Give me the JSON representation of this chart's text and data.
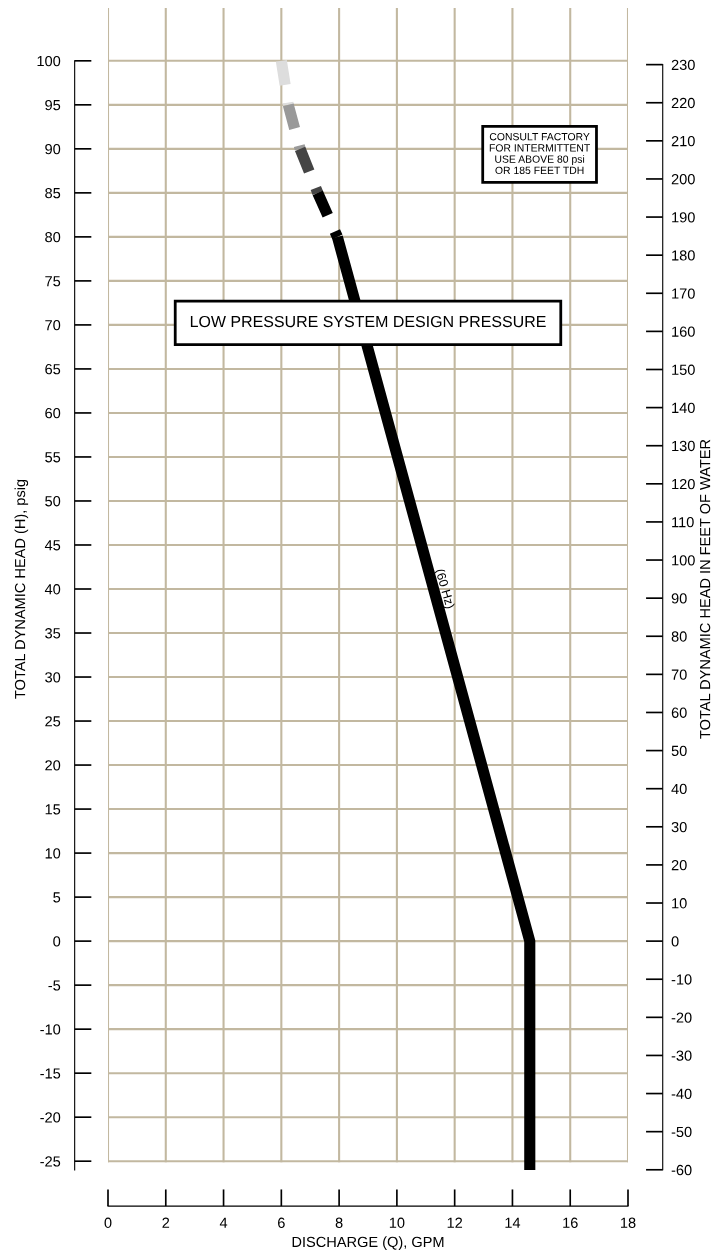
{
  "chart_data": {
    "type": "line",
    "xlabel": "DISCHARGE (Q), GPM",
    "ylabel": "TOTAL DYNAMIC HEAD (H), psig",
    "y2label": "TOTAL DYNAMIC HEAD IN FEET OF WATER",
    "series": [
      {
        "x": [
          6.0,
          6.24
        ],
        "values": [
          100,
          95
        ],
        "color": "#dddddd",
        "line_style": "dashed"
      },
      {
        "x": [
          6.24,
          6.65
        ],
        "values": [
          95,
          90
        ],
        "color": "#999999",
        "line_style": "dashed"
      },
      {
        "x": [
          6.65,
          7.26
        ],
        "values": [
          90,
          85
        ],
        "color": "#444444",
        "line_style": "dashed"
      },
      {
        "x": [
          7.26,
          7.94
        ],
        "values": [
          85,
          80
        ],
        "color": "#000000",
        "line_style": "dashed"
      },
      {
        "x": [
          7.94,
          14.6,
          14.6
        ],
        "values": [
          80,
          0,
          -26
        ],
        "color": "#000000",
        "line_style": "solid"
      }
    ],
    "xlim": [
      0,
      18
    ],
    "xticks": [
      0,
      2,
      4,
      6,
      8,
      10,
      12,
      14,
      16,
      18
    ],
    "ylim": [
      -26,
      106
    ],
    "yticks": [
      -25,
      -20,
      -15,
      -10,
      -5,
      0,
      5,
      10,
      15,
      20,
      25,
      30,
      35,
      40,
      45,
      50,
      55,
      60,
      65,
      70,
      75,
      80,
      85,
      90,
      95,
      100
    ],
    "y2lim": [
      -60.06,
      244.86
    ],
    "y2ticks": [
      -60,
      -50,
      -40,
      -30,
      -20,
      -10,
      0,
      10,
      20,
      30,
      40,
      50,
      60,
      70,
      80,
      90,
      100,
      110,
      120,
      130,
      140,
      150,
      160,
      170,
      180,
      190,
      200,
      210,
      220,
      230
    ],
    "grid": true,
    "marker": "none",
    "annotations": [
      "LOW PRESSURE SYSTEM DESIGN PRESSURE",
      "CONSULT FACTORY\nFOR INTERMITTENT\nUSE ABOVE 80 psi\nOR 185 FEET TDH",
      {
        "text": "(60 Hz)",
        "x": 11.3,
        "y": 40
      }
    ]
  }
}
